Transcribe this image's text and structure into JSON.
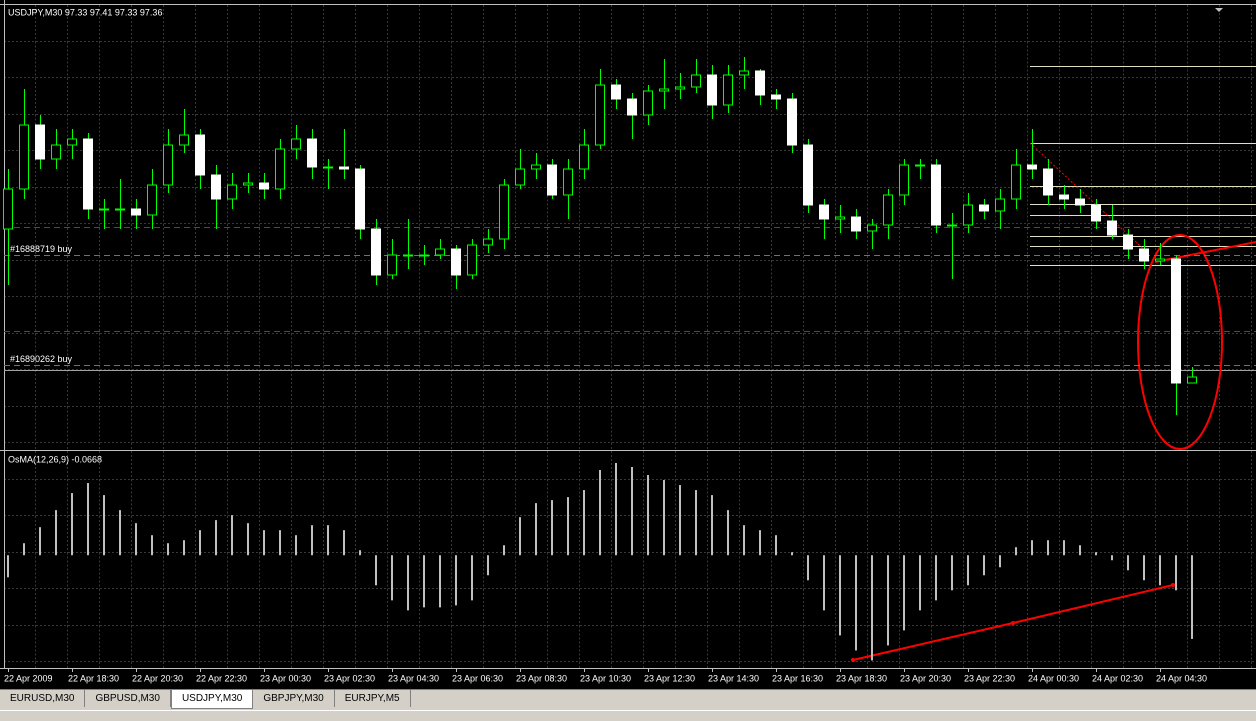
{
  "chart_data": [
    {
      "type": "candlestick",
      "title": "USDJPY,M30  97.33 97.41 97.33 97.36",
      "ylim": [
        97.0,
        99.22
      ],
      "candles": [
        [
          98.1,
          98.4,
          97.82,
          98.3
        ],
        [
          98.3,
          98.8,
          98.25,
          98.62
        ],
        [
          98.62,
          98.67,
          98.4,
          98.45
        ],
        [
          98.45,
          98.6,
          98.4,
          98.52
        ],
        [
          98.52,
          98.6,
          98.45,
          98.55
        ],
        [
          98.55,
          98.58,
          98.15,
          98.2
        ],
        [
          98.2,
          98.25,
          98.1,
          98.2
        ],
        [
          98.2,
          98.35,
          98.1,
          98.2
        ],
        [
          98.2,
          98.25,
          98.1,
          98.17
        ],
        [
          98.17,
          98.4,
          98.1,
          98.32
        ],
        [
          98.32,
          98.6,
          98.28,
          98.52
        ],
        [
          98.52,
          98.7,
          98.48,
          98.57
        ],
        [
          98.57,
          98.6,
          98.3,
          98.37
        ],
        [
          98.37,
          98.42,
          98.1,
          98.25
        ],
        [
          98.25,
          98.38,
          98.2,
          98.32
        ],
        [
          98.32,
          98.38,
          98.28,
          98.33
        ],
        [
          98.33,
          98.38,
          98.25,
          98.3
        ],
        [
          98.3,
          98.55,
          98.25,
          98.5
        ],
        [
          98.5,
          98.62,
          98.45,
          98.55
        ],
        [
          98.55,
          98.6,
          98.35,
          98.41
        ],
        [
          98.41,
          98.45,
          98.3,
          98.41
        ],
        [
          98.41,
          98.6,
          98.35,
          98.4
        ],
        [
          98.4,
          98.42,
          98.05,
          98.1
        ],
        [
          98.1,
          98.15,
          97.82,
          97.87
        ],
        [
          97.87,
          98.05,
          97.85,
          97.97
        ],
        [
          97.97,
          98.15,
          97.9,
          97.97
        ],
        [
          97.97,
          98.02,
          97.92,
          97.97
        ],
        [
          97.97,
          98.05,
          97.95,
          98.0
        ],
        [
          98.0,
          98.02,
          97.8,
          97.87
        ],
        [
          97.87,
          98.05,
          97.85,
          98.02
        ],
        [
          98.02,
          98.1,
          97.98,
          98.05
        ],
        [
          98.05,
          98.35,
          98.0,
          98.32
        ],
        [
          98.32,
          98.5,
          98.3,
          98.4
        ],
        [
          98.4,
          98.48,
          98.35,
          98.42
        ],
        [
          98.42,
          98.45,
          98.25,
          98.27
        ],
        [
          98.27,
          98.45,
          98.15,
          98.4
        ],
        [
          98.4,
          98.6,
          98.35,
          98.52
        ],
        [
          98.52,
          98.9,
          98.5,
          98.82
        ],
        [
          98.82,
          98.85,
          98.7,
          98.75
        ],
        [
          98.75,
          98.78,
          98.55,
          98.67
        ],
        [
          98.67,
          98.82,
          98.62,
          98.79
        ],
        [
          98.79,
          98.95,
          98.7,
          98.8
        ],
        [
          98.8,
          98.88,
          98.75,
          98.81
        ],
        [
          98.81,
          98.95,
          98.78,
          98.87
        ],
        [
          98.87,
          98.92,
          98.65,
          98.72
        ],
        [
          98.72,
          98.92,
          98.68,
          98.87
        ],
        [
          98.87,
          98.96,
          98.8,
          98.89
        ],
        [
          98.89,
          98.9,
          98.72,
          98.77
        ],
        [
          98.77,
          98.8,
          98.7,
          98.75
        ],
        [
          98.75,
          98.78,
          98.48,
          98.52
        ],
        [
          98.52,
          98.55,
          98.18,
          98.22
        ],
        [
          98.22,
          98.25,
          98.05,
          98.15
        ],
        [
          98.15,
          98.22,
          98.08,
          98.16
        ],
        [
          98.16,
          98.2,
          98.05,
          98.09
        ],
        [
          98.09,
          98.15,
          98.0,
          98.12
        ],
        [
          98.12,
          98.3,
          98.05,
          98.27
        ],
        [
          98.27,
          98.45,
          98.22,
          98.42
        ],
        [
          98.42,
          98.45,
          98.35,
          98.42
        ],
        [
          98.42,
          98.45,
          98.08,
          98.12
        ],
        [
          98.12,
          98.18,
          97.85,
          98.12
        ],
        [
          98.12,
          98.28,
          98.08,
          98.22
        ],
        [
          98.22,
          98.25,
          98.15,
          98.19
        ],
        [
          98.19,
          98.3,
          98.1,
          98.25
        ],
        [
          98.25,
          98.5,
          98.2,
          98.42
        ],
        [
          98.42,
          98.6,
          98.35,
          98.4
        ],
        [
          98.4,
          98.45,
          98.22,
          98.27
        ],
        [
          98.27,
          98.32,
          98.2,
          98.25
        ],
        [
          98.25,
          98.3,
          98.18,
          98.22
        ],
        [
          98.22,
          98.25,
          98.1,
          98.14
        ],
        [
          98.14,
          98.22,
          98.05,
          98.07
        ],
        [
          98.07,
          98.1,
          97.95,
          98.0
        ],
        [
          98.0,
          98.05,
          97.9,
          97.94
        ],
        [
          97.94,
          98.03,
          97.92,
          97.95
        ],
        [
          97.95,
          97.97,
          97.17,
          97.33
        ],
        [
          97.33,
          97.41,
          97.33,
          97.36
        ]
      ],
      "up_color": "#000000",
      "down_color": "#ffffff",
      "wick_color": "#00ff00",
      "orders": [
        {
          "label": "#16888719 buy",
          "price": 97.97
        },
        {
          "label": "#16890262 buy",
          "price": 97.42
        }
      ],
      "order_color": "#00c000",
      "levels": [
        98.11,
        97.59
      ],
      "level_color": "#ff0000",
      "xticks": [
        {
          "value": 0,
          "label": "22 Apr 2009"
        },
        {
          "value": 4,
          "label": "22 Apr 18:30"
        },
        {
          "value": 8,
          "label": "22 Apr 20:30"
        },
        {
          "value": 12,
          "label": "22 Apr 22:30"
        },
        {
          "value": 16,
          "label": "23 Apr 00:30"
        },
        {
          "value": 20,
          "label": "23 Apr 02:30"
        },
        {
          "value": 24,
          "label": "23 Apr 04:30"
        },
        {
          "value": 28,
          "label": "23 Apr 06:30"
        },
        {
          "value": 32,
          "label": "23 Apr 08:30"
        },
        {
          "value": 36,
          "label": "23 Apr 10:30"
        },
        {
          "value": 40,
          "label": "23 Apr 12:30"
        },
        {
          "value": 44,
          "label": "23 Apr 14:30"
        },
        {
          "value": 48,
          "label": "23 Apr 16:30"
        },
        {
          "value": 52,
          "label": "23 Apr 18:30"
        },
        {
          "value": 56,
          "label": "23 Apr 20:30"
        },
        {
          "value": 60,
          "label": "23 Apr 22:30"
        },
        {
          "value": 64,
          "label": "24 Apr 00:30"
        },
        {
          "value": 68,
          "label": "24 Apr 02:30"
        },
        {
          "value": 72,
          "label": "24 Apr 04:30"
        }
      ]
    },
    {
      "type": "bar",
      "title": "OsMA(12,26,9) -0.0668",
      "color": "#c0c0c0",
      "ylim": [
        -0.09,
        0.08
      ],
      "values": [
        -0.0176,
        0.0096,
        0.0224,
        0.036,
        0.0496,
        0.0576,
        0.048,
        0.036,
        0.0256,
        0.016,
        0.0096,
        0.012,
        0.02,
        0.028,
        0.032,
        0.0256,
        0.02,
        0.02,
        0.016,
        0.024,
        0.024,
        0.02,
        0.004,
        -0.024,
        -0.036,
        -0.044,
        -0.0416,
        -0.0416,
        -0.04,
        -0.036,
        -0.016,
        0.008,
        0.0304,
        0.0416,
        0.044,
        0.0464,
        0.052,
        0.068,
        0.0736,
        0.0704,
        0.064,
        0.06,
        0.056,
        0.052,
        0.048,
        0.036,
        0.024,
        0.02,
        0.016,
        0.0024,
        -0.02,
        -0.044,
        -0.064,
        -0.076,
        -0.084,
        -0.072,
        -0.06,
        -0.044,
        -0.036,
        -0.028,
        -0.024,
        -0.016,
        -0.0096,
        0.0064,
        0.012,
        0.012,
        0.012,
        0.008,
        0.0024,
        -0.004,
        -0.012,
        -0.02,
        -0.024,
        -0.028,
        -0.0668
      ]
    }
  ],
  "tabs": [
    "EURUSD,M30",
    "GBPUSD,M30",
    "USDJPY,M30",
    "GBPJPY,M30",
    "EURJPY,M5"
  ]
}
